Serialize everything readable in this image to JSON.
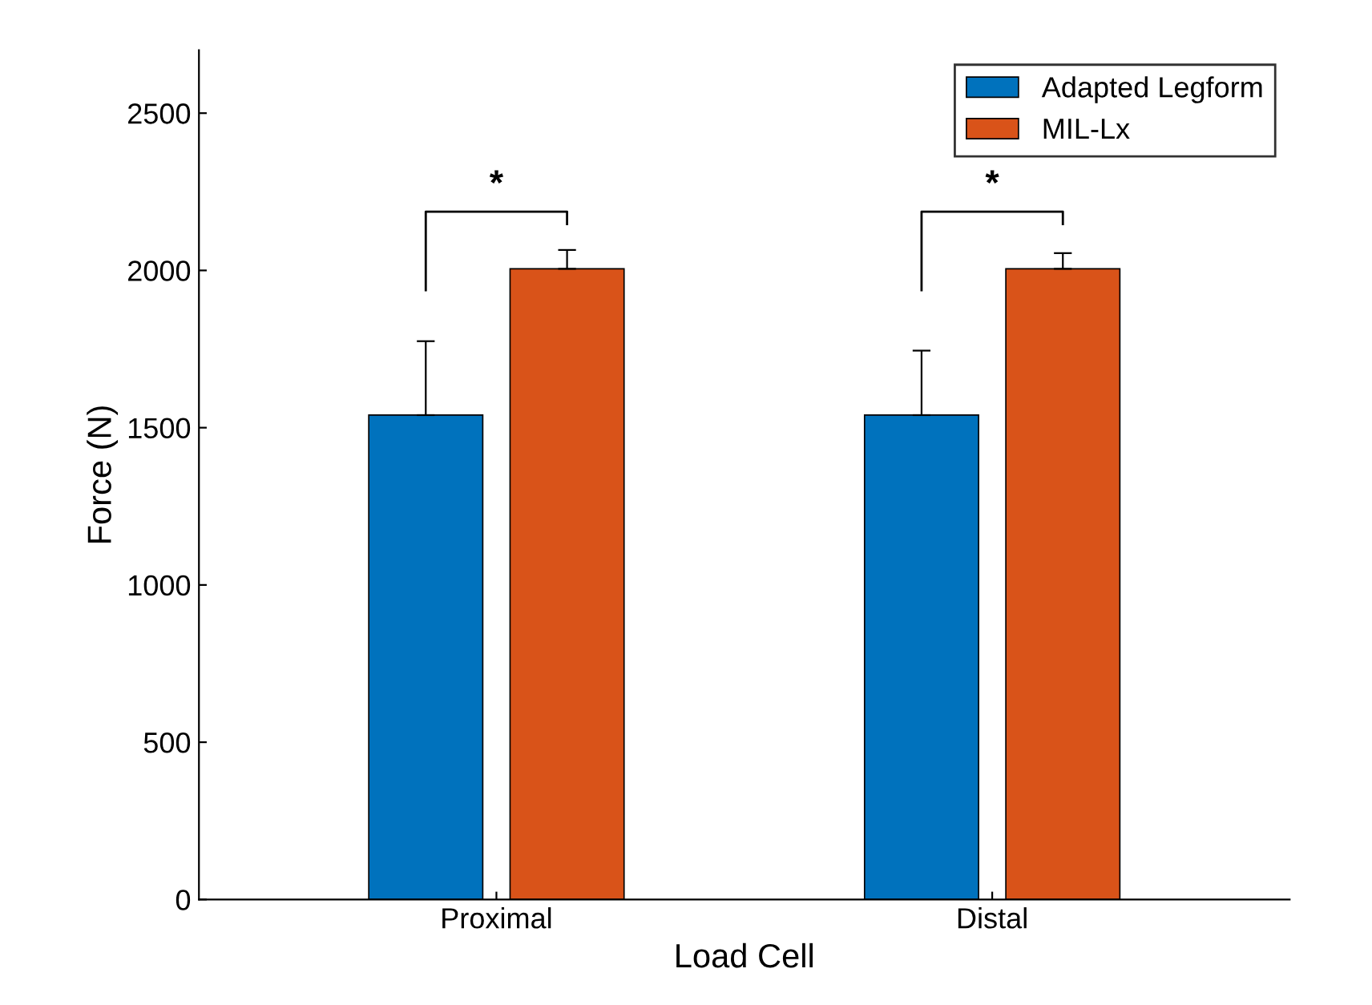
{
  "chart_data": {
    "type": "bar",
    "xlabel": "Load Cell",
    "ylabel": "Force (N)",
    "categories": [
      "Proximal",
      "Distal"
    ],
    "series": [
      {
        "name": "Adapted Legform",
        "color": "#0072bd",
        "values": [
          1540,
          1540
        ],
        "errors": [
          [
            1540,
            1775
          ],
          [
            1540,
            1745
          ]
        ]
      },
      {
        "name": "MIL-Lx",
        "color": "#d95319",
        "values": [
          2005,
          2005
        ],
        "errors": [
          [
            2005,
            2065
          ],
          [
            2005,
            2055
          ]
        ]
      }
    ],
    "ylim": [
      0,
      2700
    ],
    "yticks": [
      0,
      500,
      1000,
      1500,
      2000,
      2500
    ],
    "annotations": [
      "*",
      "*"
    ],
    "legend": "top right",
    "grid": false
  }
}
